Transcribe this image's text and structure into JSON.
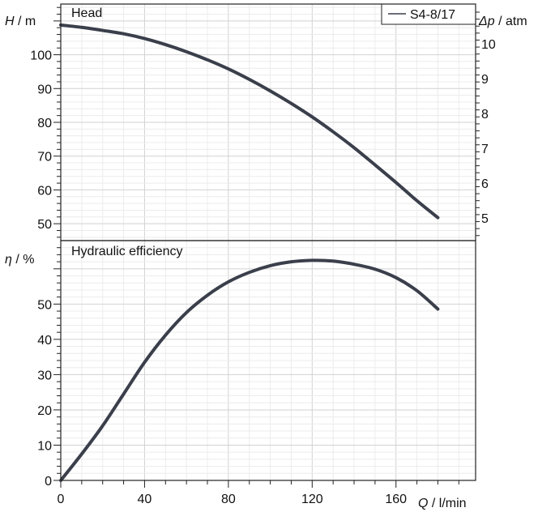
{
  "chart_data": [
    {
      "type": "line",
      "title": "Head",
      "ylabel_sym": "H",
      "ylabel_unit": " / m",
      "y2label_sym": "Δp",
      "y2label_unit": " / atm",
      "xlim": [
        0,
        198
      ],
      "ylim": [
        45,
        115
      ],
      "y2lim_atm_per_m": 0.0968,
      "yticks": [
        50,
        60,
        70,
        80,
        90,
        100
      ],
      "y2ticks": [
        5,
        6,
        7,
        8,
        9,
        10
      ],
      "grid": true,
      "legend": {
        "position": "top-right",
        "entries": [
          "S4-8/17"
        ]
      },
      "series": [
        {
          "name": "S4-8/17",
          "x": [
            0,
            10,
            20,
            30,
            40,
            50,
            60,
            70,
            80,
            90,
            100,
            110,
            120,
            130,
            140,
            150,
            160,
            170,
            180
          ],
          "y": [
            108.8,
            108.1,
            107.2,
            106.2,
            104.8,
            103.0,
            100.9,
            98.5,
            95.8,
            92.7,
            89.3,
            85.6,
            81.6,
            77.2,
            72.5,
            67.4,
            62.2,
            56.8,
            51.8
          ]
        }
      ]
    },
    {
      "type": "line",
      "title": "Hydraulic efficiency",
      "ylabel_sym": "η",
      "ylabel_unit": " / %",
      "xlabel_sym": "Q",
      "xlabel_unit": " / l/min",
      "xlim": [
        0,
        198
      ],
      "ylim": [
        0,
        68
      ],
      "yticks": [
        0,
        10,
        20,
        30,
        40,
        50
      ],
      "xticks": [
        0,
        40,
        80,
        120,
        160
      ],
      "grid": true,
      "series": [
        {
          "name": "S4-8/17",
          "x": [
            0,
            10,
            20,
            30,
            40,
            50,
            60,
            70,
            80,
            90,
            100,
            110,
            120,
            130,
            140,
            150,
            160,
            170,
            180
          ],
          "y": [
            0,
            7.5,
            15.5,
            24.5,
            33.5,
            41.2,
            47.6,
            52.5,
            56.3,
            59.0,
            60.9,
            62.0,
            62.4,
            62.2,
            61.3,
            59.9,
            57.5,
            53.8,
            48.6
          ]
        }
      ]
    }
  ]
}
